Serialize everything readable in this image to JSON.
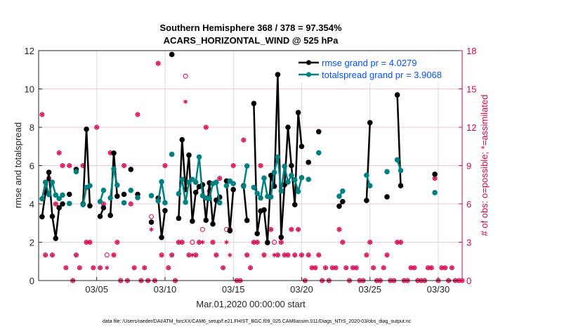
{
  "chart_data": {
    "type": "line",
    "title": [
      "Southern Hemisphere 368 / 378 = 97.354%",
      "ACARS_HORIZONTAL_WIND @ 525 hPa"
    ],
    "xlabel": "Mar.01,2020 00:00:00 start",
    "ylabel": "rmse and totalspread",
    "ylabel_right": "# of obs: o=possible; *=assimilated",
    "footnote": "data file: /Users/raeder/DAI/ATM_forcXX/CAM6_setup/f.e21.FHIST_BGC.f09_025.CAM6assim.011/Diags_NTrS_2020-03/obs_diag_output.nc",
    "xlim": [
      "02/29 18:00",
      "03/31 18:00"
    ],
    "ylim": [
      0,
      12
    ],
    "ylim_right": [
      0,
      18
    ],
    "xticks": [
      "03/05",
      "03/10",
      "03/15",
      "03/20",
      "03/25",
      "03/30"
    ],
    "yticks": [
      "0",
      "2",
      "4",
      "6",
      "8",
      "10",
      "12"
    ],
    "yticks_right": [
      "0",
      "3",
      "6",
      "9",
      "12",
      "15",
      "18"
    ],
    "grid": true,
    "legend_position": "top-right",
    "colors": {
      "rmse": "#000000",
      "totalspread": "#008080",
      "obs": "#d6004f",
      "legend_text": "#0050ff",
      "gridline": "#d9d9d9",
      "grid_right": "#f2c6d6"
    },
    "series": [
      {
        "name": "rmse grand pr = 4.0279",
        "key": "rmse",
        "points": [
          [
            "03/01 00:00",
            3.33
          ],
          [
            "03/01 06:00",
            4.6
          ],
          [
            "03/01 12:00",
            5.65
          ],
          [
            "03/01 18:00",
            3.35
          ],
          [
            "03/02 00:00",
            2.2
          ],
          [
            "03/02 06:00",
            3.8
          ],
          [
            "03/02 12:00",
            4.0
          ],
          [
            "03/03 00:00",
            4.5
          ],
          [
            "03/03 12:00",
            5.8
          ],
          [
            "03/04 00:00",
            4.0
          ],
          [
            "03/04 06:00",
            7.9
          ],
          [
            "03/04 12:00",
            3.9
          ],
          [
            "03/05 06:00",
            3.35
          ],
          [
            "03/05 12:00",
            3.8
          ],
          [
            "03/06 00:00",
            3.4
          ],
          [
            "03/06 06:00",
            6.65
          ],
          [
            "03/06 12:00",
            4.4
          ],
          [
            "03/07 00:00",
            4.5
          ],
          [
            "03/07 12:00",
            5.8
          ],
          [
            "03/08 00:00",
            4.5
          ],
          [
            "03/09 00:00",
            3.05
          ],
          [
            "03/09 12:00",
            4.3
          ],
          [
            "03/09 18:00",
            2.25
          ],
          [
            "03/10 00:00",
            3.65
          ],
          [
            "03/10 12:00",
            11.8
          ],
          [
            "03/11 00:00",
            3.25
          ],
          [
            "03/11 06:00",
            7.35
          ],
          [
            "03/11 12:00",
            4.75
          ],
          [
            "03/11 18:00",
            6.55
          ],
          [
            "03/12 00:00",
            3.1
          ],
          [
            "03/12 06:00",
            4.6
          ],
          [
            "03/12 12:00",
            4.9
          ],
          [
            "03/12 18:00",
            5.0
          ],
          [
            "03/13 00:00",
            3.15
          ],
          [
            "03/13 06:00",
            5.1
          ],
          [
            "03/13 12:00",
            2.95
          ],
          [
            "03/13 18:00",
            4.2
          ],
          [
            "03/14 00:00",
            4.35
          ],
          [
            "03/14 12:00",
            5.2
          ],
          [
            "03/14 18:00",
            2.6
          ],
          [
            "03/15 00:00",
            4.75
          ],
          [
            "03/15 18:00",
            4.95
          ],
          [
            "03/16 00:00",
            3.14
          ],
          [
            "03/16 12:00",
            9.24
          ],
          [
            "03/16 18:00",
            2.45
          ],
          [
            "03/17 00:00",
            3.63
          ],
          [
            "03/17 06:00",
            3.69
          ],
          [
            "03/17 12:00",
            1.98
          ],
          [
            "03/17 18:00",
            5.49
          ],
          [
            "03/18 00:00",
            4.92
          ],
          [
            "03/18 06:00",
            10.75
          ],
          [
            "03/18 12:00",
            2.26
          ],
          [
            "03/18 18:00",
            5.0
          ],
          [
            "03/19 00:00",
            8.0
          ],
          [
            "03/19 06:00",
            6.0
          ],
          [
            "03/19 12:00",
            3.96
          ],
          [
            "03/19 18:00",
            8.77
          ],
          [
            "03/20 00:00",
            7.0
          ],
          [
            "03/20 12:00",
            6.17
          ],
          [
            "03/21 06:00",
            7.77
          ],
          [
            "03/22 18:00",
            3.88
          ],
          [
            "03/23 00:00",
            4.12
          ],
          [
            "03/24 18:00",
            4.18
          ],
          [
            "03/25 00:00",
            8.24
          ],
          [
            "03/26 06:00",
            4.37
          ],
          [
            "03/27 00:00",
            9.69
          ],
          [
            "03/27 06:00",
            4.95
          ],
          [
            "03/29 18:00",
            5.55
          ]
        ]
      },
      {
        "name": "totalspread grand pr = 3.9068",
        "key": "totalspread",
        "points": [
          [
            "03/01 00:00",
            4.27
          ],
          [
            "03/01 06:00",
            5.13
          ],
          [
            "03/01 12:00",
            4.49
          ],
          [
            "03/01 18:00",
            5.13
          ],
          [
            "03/02 00:00",
            4.46
          ],
          [
            "03/02 06:00",
            4.28
          ],
          [
            "03/02 12:00",
            4.46
          ],
          [
            "03/03 00:00",
            4.02
          ],
          [
            "03/03 12:00",
            5.68
          ],
          [
            "03/04 00:00",
            3.96
          ],
          [
            "03/04 06:00",
            4.86
          ],
          [
            "03/04 12:00",
            4.95
          ],
          [
            "03/05 06:00",
            4.12
          ],
          [
            "03/05 12:00",
            4.71
          ],
          [
            "03/06 00:00",
            4.31
          ],
          [
            "03/06 06:00",
            5.83
          ],
          [
            "03/06 12:00",
            4.98
          ],
          [
            "03/07 00:00",
            4.06
          ],
          [
            "03/07 12:00",
            4.71
          ],
          [
            "03/08 00:00",
            4.33
          ],
          [
            "03/09 00:00",
            4.43
          ],
          [
            "03/09 12:00",
            4.16
          ],
          [
            "03/09 18:00",
            5.16
          ],
          [
            "03/10 00:00",
            4.06
          ],
          [
            "03/10 12:00",
            6.59
          ],
          [
            "03/11 00:00",
            4.53
          ],
          [
            "03/11 06:00",
            5.28
          ],
          [
            "03/11 12:00",
            4.09
          ],
          [
            "03/11 18:00",
            5.13
          ],
          [
            "03/12 00:00",
            5.28
          ],
          [
            "03/12 06:00",
            5.13
          ],
          [
            "03/12 12:00",
            6.45
          ],
          [
            "03/12 18:00",
            4.43
          ],
          [
            "03/13 00:00",
            4.31
          ],
          [
            "03/13 06:00",
            4.28
          ],
          [
            "03/13 12:00",
            5.06
          ],
          [
            "03/13 18:00",
            5.13
          ],
          [
            "03/14 00:00",
            4.06
          ],
          [
            "03/14 12:00",
            4.95
          ],
          [
            "03/14 18:00",
            5.19
          ],
          [
            "03/15 00:00",
            5.06
          ],
          [
            "03/15 18:00",
            4.92
          ],
          [
            "03/16 00:00",
            5.98
          ],
          [
            "03/16 12:00",
            4.86
          ],
          [
            "03/16 18:00",
            4.55
          ],
          [
            "03/17 00:00",
            4.31
          ],
          [
            "03/17 06:00",
            5.35
          ],
          [
            "03/17 12:00",
            4.39
          ],
          [
            "03/17 18:00",
            4.37
          ],
          [
            "03/18 00:00",
            5.65
          ],
          [
            "03/18 06:00",
            6.45
          ],
          [
            "03/18 12:00",
            4.67
          ],
          [
            "03/18 18:00",
            5.96
          ],
          [
            "03/19 00:00",
            5.14
          ],
          [
            "03/19 06:00",
            5.49
          ],
          [
            "03/19 12:00",
            5.26
          ],
          [
            "03/19 18:00",
            4.65
          ],
          [
            "03/20 00:00",
            5.37
          ],
          [
            "03/20 12:00",
            5.28
          ],
          [
            "03/21 06:00",
            6.67
          ],
          [
            "03/22 18:00",
            4.4
          ],
          [
            "03/23 00:00",
            4.67
          ],
          [
            "03/24 18:00",
            5.5
          ],
          [
            "03/25 00:00",
            4.95
          ],
          [
            "03/26 06:00",
            5.68
          ],
          [
            "03/27 00:00",
            6.3
          ],
          [
            "03/27 06:00",
            5.74
          ],
          [
            "03/29 18:00",
            4.59
          ]
        ]
      }
    ],
    "obs_counts": {
      "columns": [
        "time",
        "possible",
        "assimilated"
      ],
      "rows": [
        [
          "03/01 00:00",
          13,
          13
        ],
        [
          "03/01 06:00",
          2,
          2
        ],
        [
          "03/01 12:00",
          8,
          8
        ],
        [
          "03/01 18:00",
          2,
          2
        ],
        [
          "03/02 00:00",
          6,
          6
        ],
        [
          "03/02 06:00",
          10,
          10
        ],
        [
          "03/02 12:00",
          9,
          9
        ],
        [
          "03/02 18:00",
          1,
          1
        ],
        [
          "03/03 00:00",
          9,
          9
        ],
        [
          "03/03 06:00",
          0,
          0
        ],
        [
          "03/03 12:00",
          2,
          2
        ],
        [
          "03/03 18:00",
          1,
          1
        ],
        [
          "03/04 00:00",
          9,
          9
        ],
        [
          "03/04 06:00",
          3,
          3
        ],
        [
          "03/04 12:00",
          3,
          3
        ],
        [
          "03/04 18:00",
          1,
          1
        ],
        [
          "03/05 00:00",
          12,
          12
        ],
        [
          "03/05 06:00",
          1,
          1
        ],
        [
          "03/05 12:00",
          6,
          6
        ],
        [
          "03/05 18:00",
          2,
          1
        ],
        [
          "03/06 00:00",
          10,
          10
        ],
        [
          "03/06 06:00",
          2,
          2
        ],
        [
          "03/06 12:00",
          3,
          3
        ],
        [
          "03/06 18:00",
          0,
          0
        ],
        [
          "03/07 00:00",
          9,
          9
        ],
        [
          "03/07 06:00",
          0,
          0
        ],
        [
          "03/07 12:00",
          6,
          6
        ],
        [
          "03/07 18:00",
          1,
          1
        ],
        [
          "03/08 00:00",
          13,
          13
        ],
        [
          "03/08 06:00",
          0,
          0
        ],
        [
          "03/08 12:00",
          1,
          1
        ],
        [
          "03/08 18:00",
          0,
          0
        ],
        [
          "03/09 00:00",
          5,
          4
        ],
        [
          "03/09 06:00",
          0,
          0
        ],
        [
          "03/09 12:00",
          17,
          17
        ],
        [
          "03/09 18:00",
          2,
          2
        ],
        [
          "03/10 00:00",
          9,
          9
        ],
        [
          "03/10 06:00",
          1,
          1
        ],
        [
          "03/10 12:00",
          2,
          2
        ],
        [
          "03/10 18:00",
          0,
          0
        ],
        [
          "03/11 00:00",
          3,
          3
        ],
        [
          "03/11 06:00",
          3,
          3
        ],
        [
          "03/11 12:00",
          16,
          14
        ],
        [
          "03/11 18:00",
          2,
          2
        ],
        [
          "03/12 00:00",
          3,
          2
        ],
        [
          "03/12 06:00",
          2,
          2
        ],
        [
          "03/12 12:00",
          3,
          3
        ],
        [
          "03/12 18:00",
          4,
          3
        ],
        [
          "03/13 00:00",
          12,
          12
        ],
        [
          "03/13 06:00",
          7,
          7
        ],
        [
          "03/13 12:00",
          3,
          3
        ],
        [
          "03/13 18:00",
          2,
          2
        ],
        [
          "03/14 00:00",
          8,
          8
        ],
        [
          "03/14 06:00",
          1,
          1
        ],
        [
          "03/14 12:00",
          4,
          3
        ],
        [
          "03/14 18:00",
          4,
          2
        ],
        [
          "03/15 00:00",
          9,
          9
        ],
        [
          "03/15 06:00",
          0,
          0
        ],
        [
          "03/15 12:00",
          0,
          0
        ],
        [
          "03/15 18:00",
          11,
          11
        ],
        [
          "03/16 00:00",
          2,
          2
        ],
        [
          "03/16 06:00",
          1,
          1
        ],
        [
          "03/16 12:00",
          3,
          3
        ],
        [
          "03/16 18:00",
          3,
          3
        ],
        [
          "03/17 00:00",
          9,
          9
        ],
        [
          "03/17 06:00",
          2,
          2
        ],
        [
          "03/17 12:00",
          3,
          3
        ],
        [
          "03/17 18:00",
          4,
          4
        ],
        [
          "03/18 00:00",
          3,
          2
        ],
        [
          "03/18 06:00",
          2,
          2
        ],
        [
          "03/18 12:00",
          3,
          3
        ],
        [
          "03/18 18:00",
          2,
          2
        ],
        [
          "03/19 00:00",
          2,
          2
        ],
        [
          "03/19 06:00",
          4,
          4
        ],
        [
          "03/19 12:00",
          2,
          2
        ],
        [
          "03/19 18:00",
          4,
          4
        ],
        [
          "03/20 00:00",
          2,
          2
        ],
        [
          "03/20 06:00",
          0,
          0
        ],
        [
          "03/20 12:00",
          2,
          2
        ],
        [
          "03/20 18:00",
          1,
          1
        ],
        [
          "03/21 00:00",
          1,
          1
        ],
        [
          "03/21 06:00",
          2,
          2
        ],
        [
          "03/21 12:00",
          0,
          0
        ],
        [
          "03/21 18:00",
          1,
          1
        ],
        [
          "03/22 00:00",
          0,
          0
        ],
        [
          "03/22 06:00",
          1,
          1
        ],
        [
          "03/22 12:00",
          1,
          1
        ],
        [
          "03/22 18:00",
          4,
          4
        ],
        [
          "03/23 00:00",
          3,
          3
        ],
        [
          "03/23 06:00",
          1,
          1
        ],
        [
          "03/23 12:00",
          0,
          0
        ],
        [
          "03/23 18:00",
          1,
          1
        ],
        [
          "03/24 00:00",
          1,
          1
        ],
        [
          "03/24 06:00",
          0,
          0
        ],
        [
          "03/24 12:00",
          0,
          0
        ],
        [
          "03/24 18:00",
          2,
          2
        ],
        [
          "03/25 00:00",
          3,
          3
        ],
        [
          "03/25 06:00",
          1,
          1
        ],
        [
          "03/25 12:00",
          0,
          0
        ],
        [
          "03/25 18:00",
          0,
          0
        ],
        [
          "03/26 00:00",
          1,
          1
        ],
        [
          "03/26 06:00",
          2,
          2
        ],
        [
          "03/26 12:00",
          0,
          0
        ],
        [
          "03/26 18:00",
          0,
          0
        ],
        [
          "03/27 00:00",
          3,
          3
        ],
        [
          "03/27 06:00",
          3,
          3
        ],
        [
          "03/27 12:00",
          0,
          0
        ],
        [
          "03/27 18:00",
          0,
          0
        ],
        [
          "03/28 00:00",
          1,
          1
        ],
        [
          "03/28 06:00",
          1,
          1
        ],
        [
          "03/28 12:00",
          0,
          0
        ],
        [
          "03/28 18:00",
          0,
          0
        ],
        [
          "03/29 00:00",
          0,
          0
        ],
        [
          "03/29 06:00",
          1,
          1
        ],
        [
          "03/29 12:00",
          1,
          1
        ],
        [
          "03/29 18:00",
          8,
          8
        ],
        [
          "03/30 00:00",
          0,
          0
        ],
        [
          "03/30 06:00",
          1,
          1
        ],
        [
          "03/30 12:00",
          1,
          1
        ],
        [
          "03/30 18:00",
          0,
          0
        ],
        [
          "03/31 00:00",
          1,
          1
        ],
        [
          "03/31 06:00",
          0,
          0
        ],
        [
          "03/31 12:00",
          0,
          0
        ],
        [
          "03/31 18:00",
          0,
          0
        ]
      ]
    }
  }
}
